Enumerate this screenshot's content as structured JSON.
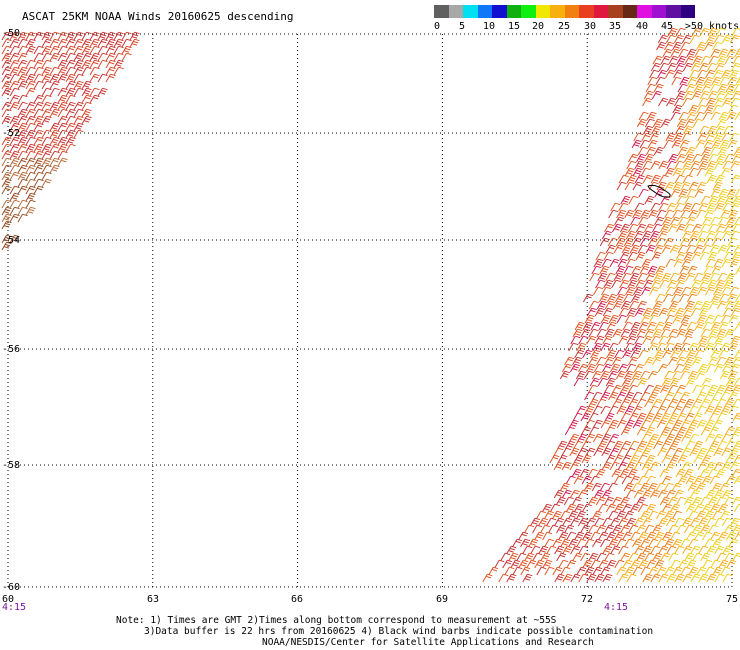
{
  "title": "ASCAT 25KM NOAA Winds 20160625 descending",
  "scale": {
    "colors": [
      "#606060",
      "#a8a8a8",
      "#00e0f0",
      "#1078f8",
      "#1010d0",
      "#10b010",
      "#10f010",
      "#f0e800",
      "#f8b010",
      "#f08010",
      "#e84020",
      "#e01840",
      "#a84020",
      "#682818",
      "#e010e0",
      "#a010d0",
      "#6010a0",
      "#2c0080"
    ],
    "labels": [
      "0",
      "5",
      "10",
      "15",
      "20",
      "25",
      "30",
      "35",
      "40",
      "45",
      ">50 knots"
    ]
  },
  "axes": {
    "lon_labels": [
      "60",
      "63",
      "66",
      "69",
      "72",
      "75"
    ],
    "lat_labels": [
      "-50",
      "-52",
      "-54",
      "-56",
      "-58",
      "-60"
    ],
    "time_labels": [
      "4:15",
      "4:15"
    ],
    "lon_range": [
      60,
      75
    ],
    "lat_range": [
      -60,
      -50
    ],
    "grid": "dotted"
  },
  "wind_swaths": [
    {
      "name": "west",
      "colors": [
        "#c83838",
        "#d84a30",
        "#b87040",
        "#985028"
      ]
    },
    {
      "name": "east",
      "colors": [
        "#f0d020",
        "#f8b020",
        "#e88020",
        "#e05828",
        "#c83838",
        "#d02050"
      ]
    }
  ],
  "notes": [
    "Note: 1) Times are GMT 2)Times along bottom correspond to measurement at ~55S",
    "3)Data buffer is 22 hrs from 20160625 4) Black wind barbs indicate possible contamination",
    "NOAA/NESDIS/Center for Satellite Applications and Research"
  ]
}
